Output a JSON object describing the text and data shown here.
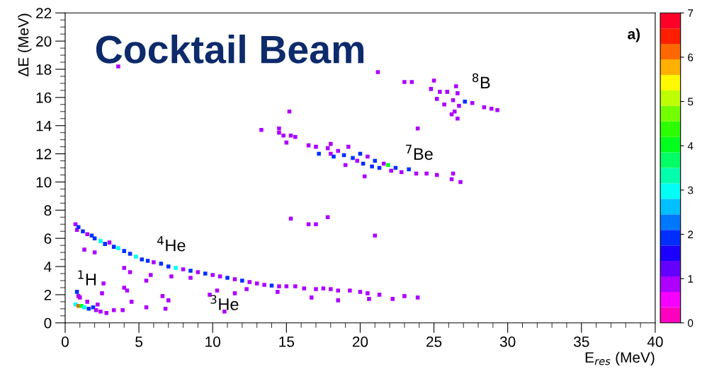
{
  "chart_data": {
    "type": "scatter",
    "title": "Cocktail Beam",
    "xlabel": "E$_{res}$ (MeV)",
    "ylabel": "ΔE (MeV)",
    "annotations": [
      "a)",
      "$^{1}$H",
      "$^{3}$He",
      "$^{4}$He",
      "$^{7}$Be",
      "$^{8}$B"
    ],
    "marker": "square",
    "grid": false,
    "xlim": [
      0,
      40
    ],
    "xticks": [
      0,
      5,
      10,
      15,
      20,
      25,
      30,
      35,
      40
    ],
    "ylim": [
      0,
      22
    ],
    "yticks": [
      0,
      2,
      4,
      6,
      8,
      10,
      12,
      14,
      16,
      18,
      20,
      22
    ],
    "clim": [
      0,
      7
    ],
    "cticks": [
      0,
      1,
      2,
      3,
      4,
      5,
      6,
      7
    ],
    "x": [
      0.7,
      0.8,
      0.9,
      1.2,
      1.5,
      1.8,
      2.0,
      2.4,
      2.7,
      3.0,
      3.3,
      3.6,
      4.0,
      4.4,
      4.8,
      5.2,
      5.6,
      6.0,
      6.5,
      7.0,
      7.5,
      8.0,
      8.5,
      9.0,
      9.5,
      10.0,
      10.5,
      11.0,
      11.5,
      12.0,
      12.5,
      13.0,
      13.5,
      14.0,
      14.5,
      15.0,
      15.6,
      16.2,
      17.0,
      17.5,
      18.0,
      18.5,
      19.3,
      20.0,
      20.5,
      21.3,
      23.0,
      23.9,
      1.3,
      2.0,
      4.0,
      4.4,
      5.8,
      5.5,
      7.2,
      8.5,
      10.3,
      12.3,
      14.4,
      9.8,
      11.5,
      16.7,
      18.5,
      20.6,
      22.2,
      6.6,
      4.2,
      2.5,
      0.8,
      0.9,
      1.0,
      0.7,
      0.9,
      1.1,
      1.3,
      1.6,
      1.9,
      2.1,
      2.4,
      2.8,
      1.5,
      2.2,
      3.3,
      3.9,
      4.5,
      5.5,
      7.0,
      6.8,
      4.0,
      2.6,
      10.8,
      15.3,
      16.5,
      17.0,
      17.8,
      21.0,
      3.6,
      21.2,
      13.3,
      14.5,
      14.5,
      15.2,
      14.8,
      15.3,
      15.6,
      15.0,
      16.5,
      17.0,
      17.2,
      17.8,
      18.0,
      18.2,
      18.5,
      18.9,
      19.2,
      19.5,
      19.8,
      20.0,
      20.2,
      20.5,
      20.8,
      21.0,
      21.3,
      21.6,
      21.9,
      22.1,
      22.4,
      22.8,
      23.3,
      19.0,
      20.3,
      23.8,
      24.5,
      25.2,
      26.3,
      26.2,
      26.8,
      23.9,
      18.0,
      23.0,
      23.5,
      25.0,
      24.8,
      25.4,
      25.9,
      26.5,
      26.6,
      25.2,
      25.7,
      26.3,
      26.7,
      26.4,
      26.6,
      26.2,
      27.1,
      27.6,
      28.4,
      28.9,
      29.3
    ],
    "values": [
      7.0,
      6.6,
      6.8,
      6.5,
      6.3,
      6.2,
      6.0,
      5.8,
      5.6,
      5.7,
      5.4,
      5.3,
      5.1,
      4.9,
      4.7,
      4.5,
      4.4,
      4.3,
      4.2,
      4.0,
      3.9,
      3.8,
      3.7,
      3.6,
      3.5,
      3.4,
      3.3,
      3.2,
      3.1,
      3.0,
      2.9,
      2.8,
      2.7,
      2.65,
      2.6,
      2.6,
      2.6,
      2.45,
      2.4,
      2.45,
      2.4,
      2.3,
      2.3,
      2.2,
      2.1,
      2.0,
      1.9,
      1.8,
      5.2,
      5.0,
      3.9,
      3.6,
      3.4,
      3.0,
      3.3,
      3.2,
      2.3,
      2.4,
      2.2,
      2.0,
      2.1,
      1.8,
      1.6,
      1.7,
      1.7,
      1.9,
      2.3,
      2.1,
      2.2,
      1.9,
      1.8,
      1.3,
      1.2,
      1.2,
      1.1,
      1.0,
      1.1,
      0.9,
      0.8,
      0.7,
      1.5,
      1.3,
      0.9,
      0.9,
      1.5,
      1.1,
      1.6,
      1.0,
      2.5,
      2.8,
      0.8,
      7.4,
      7.0,
      7.0,
      7.5,
      6.2,
      18.2,
      17.8,
      13.7,
      13.8,
      13.5,
      15.0,
      13.3,
      13.3,
      13.2,
      12.8,
      12.6,
      12.5,
      12.0,
      12.4,
      12.7,
      11.8,
      12.2,
      11.9,
      12.5,
      11.7,
      11.5,
      12.0,
      11.3,
      11.8,
      11.1,
      11.5,
      11.0,
      11.3,
      11.2,
      10.8,
      11.0,
      10.7,
      10.9,
      11.2,
      10.4,
      10.6,
      10.6,
      10.5,
      10.6,
      10.2,
      10.0,
      13.8,
      12.0,
      17.1,
      17.1,
      17.2,
      16.6,
      16.4,
      16.4,
      16.8,
      16.3,
      15.9,
      15.5,
      15.8,
      15.4,
      15.0,
      14.5,
      14.8,
      15.7,
      15.6,
      15.3,
      15.2,
      15.1
    ],
    "cvalues": [
      1,
      1,
      2,
      2,
      1,
      2,
      2,
      3,
      2,
      1,
      2,
      3,
      2,
      2,
      3,
      2,
      2,
      1,
      2,
      2,
      3,
      1,
      2,
      1,
      2,
      1,
      1,
      2,
      1,
      2,
      1,
      1,
      1,
      2,
      1,
      1,
      1,
      1,
      1,
      1,
      1,
      1,
      1,
      1,
      1,
      1,
      1,
      1,
      1,
      1,
      1,
      1,
      1,
      1,
      1,
      1,
      1,
      1,
      1,
      1,
      1,
      1,
      1,
      1,
      1,
      1,
      1,
      1,
      2,
      1,
      1,
      3,
      6,
      4,
      3,
      2,
      2,
      1,
      1,
      1,
      1,
      1,
      1,
      1,
      1,
      1,
      1,
      1,
      1,
      1,
      1,
      1,
      1,
      1,
      1,
      1,
      1,
      1,
      1,
      1,
      1,
      1,
      1,
      1,
      1,
      1,
      1,
      1,
      2,
      1,
      1,
      2,
      1,
      2,
      1,
      2,
      1,
      2,
      2,
      1,
      2,
      2,
      2,
      1,
      4,
      1,
      2,
      1,
      2,
      1,
      1,
      1,
      1,
      1,
      1,
      1,
      1,
      1,
      1,
      1,
      1,
      1,
      1,
      1,
      1,
      1,
      1,
      1,
      1,
      1,
      1,
      1,
      1,
      1,
      2,
      1,
      1,
      1,
      1
    ]
  }
}
